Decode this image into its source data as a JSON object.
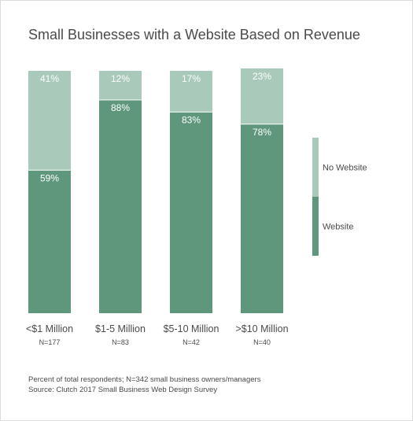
{
  "title": "Small Businesses with a Website Based on Revenue",
  "footnotes": {
    "line1": "Percent of total respondents; N=342 small business owners/managers",
    "line2": "Source: Clutch 2017 Small Business Web Design Survey"
  },
  "colors": {
    "website": "#5e977c",
    "no_website": "#a9c9ba",
    "text": "#4a4a4a",
    "bar_label": "#ffffff"
  },
  "chart_data": {
    "type": "bar",
    "stacked": true,
    "normalized": true,
    "categories": [
      "<$1 Million",
      "$1-5 Million",
      "$5-10 Million",
      ">$10 Million"
    ],
    "sample_sizes": [
      "N=177",
      "N=83",
      "N=42",
      "N=40"
    ],
    "series": [
      {
        "name": "Website",
        "values": [
          59,
          88,
          83,
          78
        ],
        "labels": [
          "59%",
          "88%",
          "83%",
          "78%"
        ]
      },
      {
        "name": "No Website",
        "values": [
          41,
          12,
          17,
          23
        ],
        "labels": [
          "41%",
          "12%",
          "17%",
          "23%"
        ]
      }
    ],
    "ylim": [
      0,
      100
    ],
    "legend": [
      "No Website",
      "Website"
    ],
    "legend_position": "right",
    "grid": false
  }
}
